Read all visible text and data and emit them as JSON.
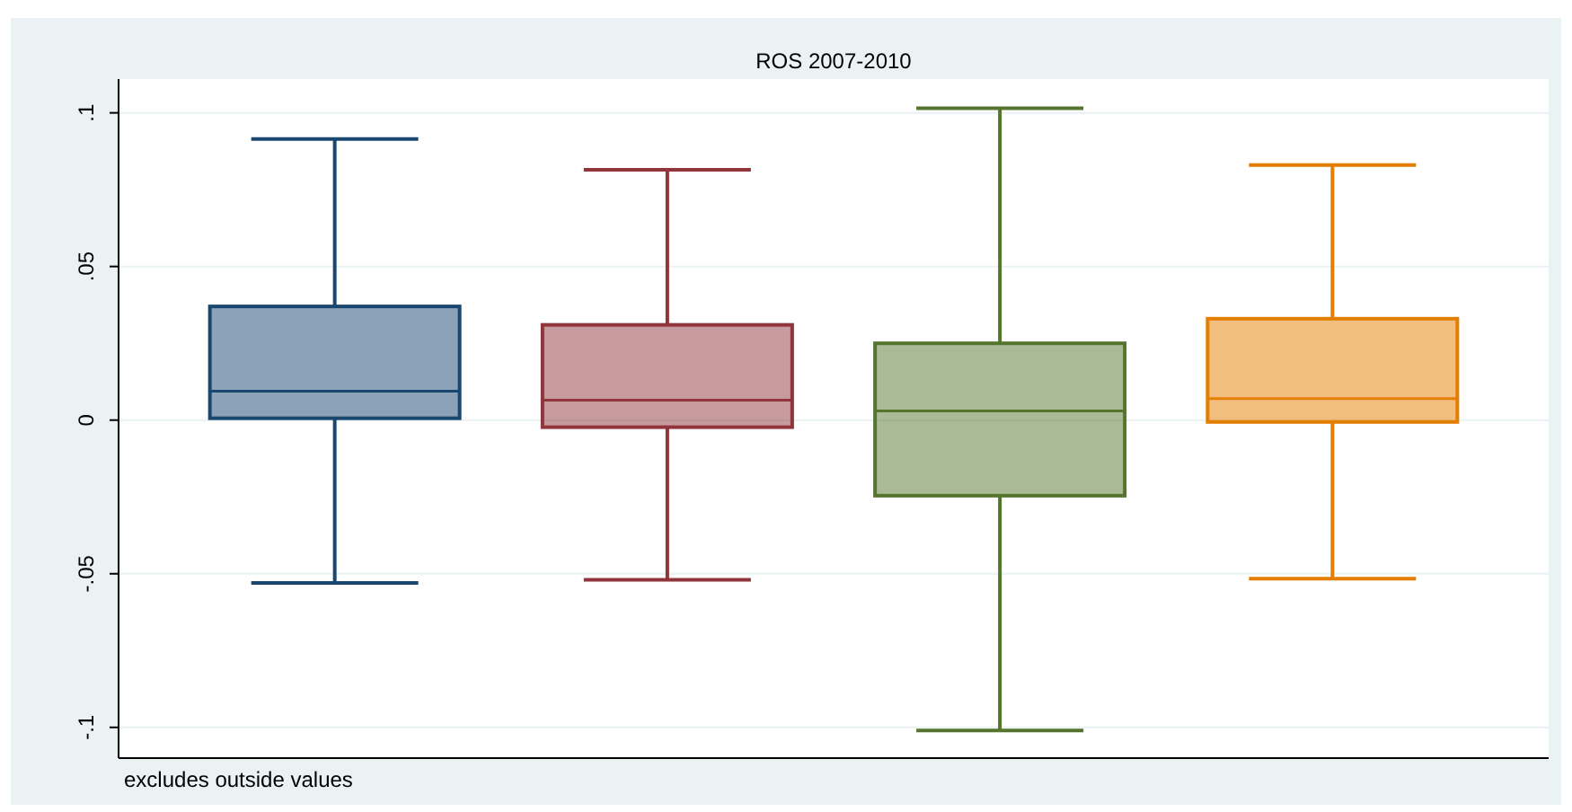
{
  "chart_data": {
    "type": "box",
    "title": "ROS 2007-2010",
    "annotations": [
      "excludes outside values"
    ],
    "categories": [
      null,
      null,
      null,
      null
    ],
    "boxes": [
      {
        "low": -0.053,
        "q1": 0.0006,
        "median": 0.0094,
        "q3": 0.037,
        "high": 0.0915
      },
      {
        "low": -0.052,
        "q1": -0.0023,
        "median": 0.0065,
        "q3": 0.031,
        "high": 0.0815
      },
      {
        "low": -0.101,
        "q1": -0.0246,
        "median": 0.003,
        "q3": 0.025,
        "high": 0.1015
      },
      {
        "low": -0.0516,
        "q1": -0.0006,
        "median": 0.007,
        "q3": 0.033,
        "high": 0.083
      }
    ],
    "colors": [
      "#1a476f",
      "#90353b",
      "#55752f",
      "#e37e00"
    ],
    "ylim": [
      -0.11,
      0.111
    ],
    "yticks": [
      {
        "value": -0.1,
        "label": "-.1"
      },
      {
        "value": -0.05,
        "label": "-.05"
      },
      0,
      {
        "value": 0.05,
        "label": ".05"
      },
      {
        "value": 0.1,
        "label": ".1"
      }
    ],
    "grid": "y"
  }
}
